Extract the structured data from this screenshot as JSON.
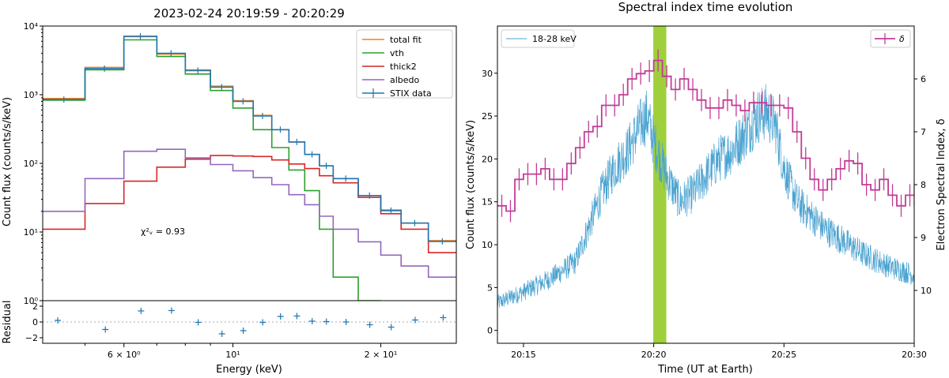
{
  "chart_data": [
    {
      "type": "line",
      "panel": "spectrum",
      "title": "2023-02-24 20:19:59 - 20:20:29",
      "ylabel": "Count flux (counts/s/keV)",
      "xscale": "log",
      "yscale": "log",
      "xlim": [
        4.1,
        28.5
      ],
      "ylim": [
        1,
        10000
      ],
      "x_ticks": [
        {
          "v": 6,
          "label": "6 × 10⁰"
        },
        {
          "v": 10,
          "label": "10¹"
        },
        {
          "v": 20,
          "label": "2 × 10¹"
        }
      ],
      "y_ticks": [
        {
          "v": 1,
          "label": "10⁰"
        },
        {
          "v": 10,
          "label": "10¹"
        },
        {
          "v": 100,
          "label": "10²"
        },
        {
          "v": 1000,
          "label": "10³"
        },
        {
          "v": 10000,
          "label": "10⁴"
        }
      ],
      "annotation": "χ²ᵥ = 0.93",
      "legend_position": "top-right",
      "bin_edges": [
        4.1,
        5,
        6,
        7,
        8,
        9,
        10,
        11,
        12,
        13,
        14,
        15,
        16,
        18,
        20,
        22,
        25,
        28.5
      ],
      "series": [
        {
          "name": "total fit",
          "color": "#ff7f0e",
          "style": "step",
          "values": [
            880,
            2500,
            7000,
            3900,
            2300,
            1330,
            820,
            500,
            310,
            205,
            135,
            92,
            60,
            34,
            21,
            13.5,
            7.5
          ]
        },
        {
          "name": "vth",
          "color": "#2ca02c",
          "style": "step",
          "values": [
            830,
            2300,
            6300,
            3600,
            2000,
            1150,
            640,
            310,
            170,
            80,
            40,
            11,
            2.2,
            1.0,
            null,
            null,
            null
          ]
        },
        {
          "name": "thick2",
          "color": "#d62728",
          "style": "step",
          "values": [
            11,
            26,
            55,
            88,
            115,
            130,
            128,
            126,
            112,
            98,
            84,
            66,
            52,
            32,
            18.5,
            11,
            5
          ]
        },
        {
          "name": "albedo",
          "color": "#9467bd",
          "style": "step",
          "values": [
            20,
            60,
            150,
            160,
            120,
            96,
            78,
            62,
            49,
            35,
            25,
            17,
            11,
            7.2,
            4.6,
            3.2,
            2.2
          ]
        },
        {
          "name": "STIX data",
          "color": "#1f77b4",
          "style": "step+errorbar",
          "values": [
            850,
            2400,
            7100,
            4000,
            2250,
            1290,
            800,
            490,
            310,
            205,
            135,
            92,
            60,
            34,
            20.5,
            13.5,
            7.3
          ]
        }
      ]
    },
    {
      "type": "scatter",
      "panel": "residual",
      "xlabel": "Energy (keV)",
      "ylabel": "Residual",
      "xscale": "log",
      "xlim": [
        4.1,
        28.5
      ],
      "ylim": [
        -2.7,
        2.7
      ],
      "y_ticks": [
        {
          "v": 2,
          "label": "2"
        },
        {
          "v": 0,
          "label": "0"
        },
        {
          "v": -2,
          "label": "−2"
        }
      ],
      "zero_line": "dotted",
      "color": "#1f77b4",
      "x": [
        4.4,
        5.5,
        6.5,
        7.5,
        8.5,
        9.5,
        10.5,
        11.5,
        12.5,
        13.5,
        14.5,
        15.5,
        17,
        19,
        21,
        23.5,
        26.8
      ],
      "values": [
        0.2,
        -0.95,
        1.4,
        1.45,
        -0.05,
        -1.5,
        -1.1,
        -0.05,
        0.7,
        0.75,
        0.1,
        0.05,
        0.0,
        -0.35,
        -0.65,
        0.25,
        0.55
      ]
    },
    {
      "type": "line",
      "panel": "time-evolution",
      "title": "Spectral index time evolution",
      "xlabel": "Time (UT at Earth)",
      "ylabel": "Count flux (counts/s/keV)",
      "y2label": "Electron Spectral Index, δ",
      "xlim": [
        "20:14:00",
        "20:30:00"
      ],
      "ylim": [
        -1.5,
        35.5
      ],
      "y2lim": [
        11.0,
        5.0
      ],
      "y2_inverted": true,
      "x_ticks": [
        "20:15",
        "20:20",
        "20:25",
        "20:30"
      ],
      "y_ticks": [
        0,
        5,
        10,
        15,
        20,
        25,
        30
      ],
      "y2_ticks": [
        6,
        7,
        8,
        9,
        10
      ],
      "highlight_span": {
        "from": "20:19:59",
        "to": "20:20:29",
        "color": "#9acd32"
      },
      "series": [
        {
          "name": "18-28 keV",
          "color": "#4ba3d1",
          "axis": "left",
          "style": "noisy-line",
          "legend_position": "top-left",
          "time": [
            "20:14:00",
            "20:15:00",
            "20:16:00",
            "20:17:00",
            "20:17:30",
            "20:18:00",
            "20:18:30",
            "20:19:00",
            "20:19:30",
            "20:19:45",
            "20:20:00",
            "20:20:30",
            "20:21:00",
            "20:21:30",
            "20:22:00",
            "20:22:30",
            "20:23:00",
            "20:23:30",
            "20:24:00",
            "20:24:20",
            "20:24:40",
            "20:25:00",
            "20:25:30",
            "20:26:00",
            "20:26:30",
            "20:27:00",
            "20:28:00",
            "20:29:00",
            "20:30:00"
          ],
          "values": [
            3.2,
            4.5,
            6,
            8,
            12,
            16,
            19,
            21,
            24,
            25,
            22,
            18,
            15,
            16,
            18,
            20,
            21,
            23,
            25,
            25.5,
            24,
            19,
            15,
            13.5,
            12,
            11,
            9,
            7.5,
            6.5
          ]
        },
        {
          "name": "δ",
          "color": "#c23c96",
          "axis": "right",
          "style": "step+errorbar",
          "legend_position": "top-right",
          "time": [
            "20:14:00",
            "20:14:20",
            "20:14:40",
            "20:15:00",
            "20:15:20",
            "20:15:40",
            "20:16:00",
            "20:16:20",
            "20:16:40",
            "20:17:00",
            "20:17:20",
            "20:17:40",
            "20:18:00",
            "20:18:20",
            "20:18:40",
            "20:19:00",
            "20:19:20",
            "20:19:40",
            "20:20:00",
            "20:20:20",
            "20:20:40",
            "20:21:00",
            "20:21:20",
            "20:21:40",
            "20:22:00",
            "20:22:20",
            "20:22:40",
            "20:23:00",
            "20:23:20",
            "20:23:40",
            "20:24:00",
            "20:24:20",
            "20:24:40",
            "20:25:00",
            "20:25:20",
            "20:25:40",
            "20:26:00",
            "20:26:20",
            "20:26:40",
            "20:27:00",
            "20:27:20",
            "20:27:40",
            "20:28:00",
            "20:28:20",
            "20:28:40",
            "20:29:00",
            "20:29:20",
            "20:29:40",
            "20:30:00"
          ],
          "values": [
            8.4,
            8.5,
            7.9,
            7.8,
            7.8,
            7.7,
            7.9,
            7.9,
            7.6,
            7.3,
            7.0,
            6.9,
            6.5,
            6.5,
            6.3,
            6.0,
            5.9,
            5.85,
            5.65,
            5.95,
            6.2,
            6.0,
            6.2,
            6.4,
            6.55,
            6.55,
            6.4,
            6.5,
            6.6,
            6.45,
            6.45,
            6.5,
            6.5,
            6.55,
            7.0,
            7.5,
            7.9,
            8.1,
            7.9,
            7.7,
            7.55,
            7.6,
            8.0,
            8.1,
            7.9,
            8.2,
            8.4,
            8.2,
            8.2
          ]
        }
      ]
    }
  ]
}
